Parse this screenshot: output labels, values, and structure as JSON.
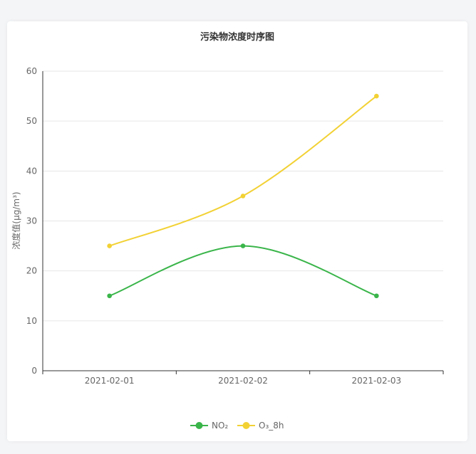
{
  "chart_data": {
    "type": "line",
    "title": "污染物浓度时序图",
    "ylabel": "浓度值(μg/m³)",
    "xlabel": "",
    "categories": [
      "2021-02-01",
      "2021-02-02",
      "2021-02-03"
    ],
    "ylim": [
      0,
      60
    ],
    "yticks": [
      0,
      10,
      20,
      30,
      40,
      50,
      60
    ],
    "grid": true,
    "legend_position": "bottom-center",
    "smooth": true,
    "series": [
      {
        "name": "NO₂",
        "values": [
          15,
          25,
          15
        ],
        "color": "#3ab54a"
      },
      {
        "name": "O₃_8h",
        "values": [
          25,
          35,
          55
        ],
        "color": "#f2d134"
      }
    ]
  }
}
